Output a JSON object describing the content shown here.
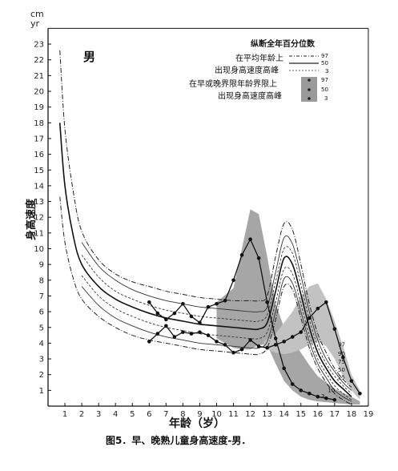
{
  "chart_data": {
    "type": "line",
    "title": "",
    "caption": "图5．早、晚熟儿童身高速度-男．",
    "sex_label": "男",
    "xlabel": "年龄（岁）",
    "ylabel": "身高速度",
    "yunit_top": "cm",
    "yunit_bottom": "yr",
    "xlim": [
      0,
      19
    ],
    "ylim": [
      0,
      24
    ],
    "xticks": [
      1,
      2,
      3,
      4,
      5,
      6,
      7,
      8,
      9,
      10,
      11,
      12,
      13,
      14,
      15,
      16,
      17,
      18,
      19
    ],
    "yticks": [
      1,
      2,
      3,
      4,
      5,
      6,
      7,
      8,
      9,
      10,
      11,
      12,
      13,
      14,
      15,
      16,
      17,
      18,
      19,
      20,
      21,
      22,
      23
    ],
    "legend": {
      "title": "纵断全年百分位数",
      "group1_line1": "在平均年龄上",
      "group1_line2": "出现身高速度高峰",
      "group2_line1": "在早或晚界限年龄界限上",
      "group2_line2": "出现身高速度高峰",
      "p97": "97",
      "p50": "50",
      "p3": "3"
    },
    "inline_percentiles": [
      "97",
      "90",
      "75",
      "50",
      "25",
      "10",
      "3"
    ],
    "series": [
      {
        "name": "97",
        "style": "dashdot",
        "x": [
          0.7,
          1,
          1.5,
          2,
          3,
          4,
          5,
          6,
          7,
          8,
          9,
          10,
          11,
          12,
          12.5,
          13,
          13.5,
          14,
          14.5,
          15,
          15.5,
          16,
          16.5,
          17,
          17.5,
          18
        ],
        "values": [
          22.6,
          17.6,
          13.6,
          11.1,
          9.3,
          8.4,
          7.9,
          7.6,
          7.3,
          7.1,
          6.9,
          6.8,
          6.7,
          6.7,
          6.7,
          7.0,
          9.5,
          11.6,
          11.2,
          9.0,
          6.5,
          4.6,
          3.4,
          2.4,
          1.7,
          1.2
        ]
      },
      {
        "name": "90",
        "style": "solid-thin",
        "x": [
          2,
          3,
          4,
          5,
          6,
          7,
          8,
          9,
          10,
          11,
          12,
          12.5,
          13,
          13.5,
          14,
          14.5,
          15,
          15.5,
          16,
          16.5,
          17,
          17.5,
          18
        ],
        "values": [
          10.4,
          8.9,
          8.0,
          7.4,
          7.0,
          6.7,
          6.5,
          6.3,
          6.2,
          6.1,
          6.0,
          6.0,
          6.3,
          8.5,
          10.7,
          10.3,
          8.3,
          6.0,
          4.2,
          3.0,
          2.2,
          1.5,
          1.0
        ]
      },
      {
        "name": "75",
        "style": "dashed",
        "x": [
          2,
          3,
          4,
          5,
          6,
          7,
          8,
          9,
          10,
          11,
          12,
          12.5,
          13,
          13.5,
          14,
          14.5,
          15,
          15.5,
          16,
          16.5,
          17,
          17.5,
          18
        ],
        "values": [
          9.6,
          8.2,
          7.3,
          6.8,
          6.4,
          6.1,
          5.9,
          5.7,
          5.6,
          5.5,
          5.4,
          5.4,
          5.8,
          7.9,
          10.0,
          9.7,
          7.7,
          5.5,
          3.8,
          2.7,
          1.9,
          1.3,
          0.8
        ]
      },
      {
        "name": "50",
        "style": "solid",
        "x": [
          0.7,
          1,
          1.5,
          2,
          3,
          4,
          5,
          6,
          7,
          8,
          9,
          10,
          11,
          12,
          12.5,
          13,
          13.5,
          14,
          14.5,
          15,
          15.5,
          16,
          16.5,
          17,
          17.5,
          18
        ],
        "values": [
          18.0,
          14.0,
          10.8,
          9.0,
          7.6,
          6.8,
          6.3,
          5.9,
          5.6,
          5.4,
          5.2,
          5.1,
          5.0,
          4.9,
          4.9,
          5.3,
          7.3,
          9.4,
          9.0,
          7.1,
          5.0,
          3.4,
          2.4,
          1.6,
          1.1,
          0.6
        ]
      },
      {
        "name": "25",
        "style": "dashed",
        "x": [
          2,
          3,
          4,
          5,
          6,
          7,
          8,
          9,
          10,
          11,
          12,
          12.5,
          13,
          13.5,
          14,
          14.5,
          15,
          15.5,
          16,
          16.5,
          17,
          17.5,
          18
        ],
        "values": [
          8.3,
          7.0,
          6.2,
          5.7,
          5.3,
          5.0,
          4.8,
          4.6,
          4.5,
          4.4,
          4.3,
          4.3,
          4.7,
          6.6,
          8.7,
          8.4,
          6.5,
          4.5,
          3.0,
          2.1,
          1.3,
          0.8,
          0.4
        ]
      },
      {
        "name": "10",
        "style": "solid-thin",
        "x": [
          2,
          3,
          4,
          5,
          6,
          7,
          8,
          9,
          10,
          11,
          12,
          12.5,
          13,
          13.5,
          14,
          14.5,
          15,
          15.5,
          16,
          16.5,
          17,
          17.5,
          18
        ],
        "values": [
          7.6,
          6.4,
          5.6,
          5.1,
          4.7,
          4.4,
          4.2,
          4.0,
          3.9,
          3.8,
          3.7,
          3.7,
          4.1,
          6.0,
          8.1,
          7.8,
          6.0,
          4.1,
          2.7,
          1.8,
          1.0,
          0.6,
          0.3
        ]
      },
      {
        "name": "3",
        "style": "dashdot",
        "x": [
          0.7,
          1,
          1.5,
          2,
          3,
          4,
          5,
          6,
          7,
          8,
          9,
          10,
          11,
          12,
          12.5,
          13,
          13.5,
          14,
          14.5,
          15,
          15.5,
          16,
          16.5,
          17,
          17.5,
          18
        ],
        "values": [
          13.3,
          10.4,
          8.1,
          6.8,
          5.7,
          5.0,
          4.5,
          4.2,
          4.0,
          3.8,
          3.6,
          3.5,
          3.4,
          3.3,
          3.3,
          3.7,
          5.5,
          7.6,
          7.4,
          5.6,
          3.7,
          2.4,
          1.5,
          0.8,
          0.4,
          0.1
        ]
      },
      {
        "name": "early_individual",
        "style": "marker-line",
        "x": [
          6,
          6.5,
          7,
          7.5,
          8,
          8.5,
          9,
          9.5,
          10,
          10.5,
          11,
          11.5,
          12,
          12.5,
          13,
          13.5,
          14,
          14.5,
          15,
          15.5,
          16,
          16.5,
          17
        ],
        "values": [
          6.6,
          5.9,
          5.5,
          5.9,
          6.5,
          5.7,
          5.3,
          6.3,
          6.5,
          6.7,
          8.0,
          9.6,
          10.6,
          9.4,
          6.6,
          4.3,
          2.4,
          1.4,
          1.0,
          0.8,
          0.6,
          0.5,
          0.4
        ]
      },
      {
        "name": "late_individual",
        "style": "marker-line",
        "x": [
          6,
          6.5,
          7,
          7.5,
          8,
          8.5,
          9,
          9.5,
          10,
          10.5,
          11,
          11.5,
          12,
          12.5,
          13,
          13.5,
          14,
          14.5,
          15,
          15.5,
          16,
          16.5,
          17,
          17.5,
          18,
          18.5
        ],
        "values": [
          4.1,
          4.6,
          5.1,
          4.4,
          4.7,
          4.6,
          4.7,
          4.5,
          4.1,
          3.9,
          3.4,
          3.6,
          4.2,
          3.8,
          3.7,
          3.9,
          4.1,
          4.4,
          4.7,
          5.6,
          6.2,
          6.6,
          4.9,
          3.1,
          1.6,
          0.8
        ]
      }
    ],
    "early_band": {
      "x_upper": [
        10,
        11,
        11.5,
        12,
        12.5,
        13,
        13.5,
        14,
        14.5,
        15,
        15.5,
        16,
        17,
        18,
        18.5
      ],
      "upper": [
        6.6,
        7.5,
        10.0,
        12.5,
        12.2,
        9.5,
        6.5,
        5.0,
        4.2,
        3.4,
        2.6,
        1.9,
        1.1,
        0.6,
        0.3
      ],
      "x_lower": [
        10,
        11,
        11.5,
        12,
        12.5,
        13,
        13.5,
        14,
        14.5,
        15,
        15.5,
        16,
        17,
        18,
        18.5
      ],
      "lower": [
        4.3,
        3.7,
        3.6,
        3.6,
        3.9,
        3.9,
        2.7,
        1.6,
        1.0,
        0.6,
        0.4,
        0.3,
        0.2,
        0.1,
        0.1
      ]
    },
    "late_band": {
      "x": [
        12.8,
        13.5,
        14,
        14.5,
        15,
        15.5,
        16,
        16.5,
        17,
        17.5,
        18,
        18.5
      ],
      "upper": [
        4.1,
        4.6,
        5.3,
        6.0,
        7.0,
        7.6,
        7.8,
        6.8,
        5.4,
        3.8,
        2.0,
        1.0
      ],
      "lower": [
        3.7,
        3.4,
        3.3,
        3.4,
        3.6,
        3.9,
        4.1,
        3.8,
        3.0,
        1.9,
        1.0,
        0.4
      ]
    }
  }
}
